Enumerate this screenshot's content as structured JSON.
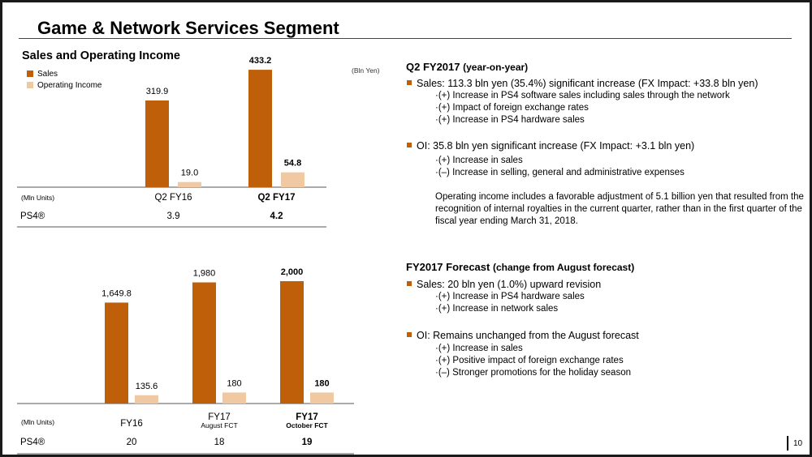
{
  "header": {
    "title": "Game & Network Services Segment"
  },
  "section_title": "Sales and Operating Income",
  "legend": [
    {
      "label": "Sales",
      "color": "#c05f0a"
    },
    {
      "label": "Operating Income",
      "color": "#f0c9a2"
    }
  ],
  "unit_label": "(Bln Yen)",
  "chart_data": [
    {
      "type": "bar",
      "title": "Sales and Operating Income",
      "unit": "(Bln Yen)",
      "categories": [
        "Q2 FY16",
        "Q2 FY17"
      ],
      "category_sublabels": [
        "",
        ""
      ],
      "series": [
        {
          "name": "Sales",
          "values": [
            319.9,
            433.2
          ],
          "color": "#c05f0a"
        },
        {
          "name": "Operating Income",
          "values": [
            19.0,
            54.8
          ],
          "color": "#f0c9a2"
        }
      ],
      "value_labels": [
        [
          "319.9",
          "433.2"
        ],
        [
          "19.0",
          "54.8"
        ]
      ],
      "bold_category_index": 1,
      "row_header": "(Mln Units)",
      "row_label": "PS4®",
      "row_values": [
        "3.9",
        "4.2"
      ]
    },
    {
      "type": "bar",
      "title": "FY2017 Forecast",
      "categories": [
        "FY16",
        "FY17",
        "FY17"
      ],
      "category_sublabels": [
        "",
        "August FCT",
        "October FCT"
      ],
      "series": [
        {
          "name": "Sales",
          "values": [
            1649.8,
            1980,
            2000
          ],
          "color": "#c05f0a"
        },
        {
          "name": "Operating Income",
          "values": [
            135.6,
            180,
            180
          ],
          "color": "#f0c9a2"
        }
      ],
      "value_labels": [
        [
          "1,649.8",
          "1,980",
          "2,000"
        ],
        [
          "135.6",
          "180",
          "180"
        ]
      ],
      "bold_category_index": 2,
      "row_header": "(Mln Units)",
      "row_label": "PS4®",
      "row_values": [
        "20",
        "18",
        "19"
      ]
    }
  ],
  "right": {
    "q2": {
      "heading": "Q2 FY2017",
      "heading_suffix": "(year-on-year)",
      "sales_bullet": "Sales: 113.3 bln yen (35.4%) significant increase (FX Impact: +33.8 bln yen)",
      "sales_points": [
        "·(+) Increase in PS4 software sales including sales through the network",
        "·(+) Impact of foreign exchange rates",
        "·(+) Increase in PS4 hardware sales"
      ],
      "oi_bullet": "OI: 35.8 bln yen significant increase (FX Impact: +3.1 bln yen)",
      "oi_points": [
        "·(+) Increase in sales",
        "·(–) Increase in selling, general and administrative expenses"
      ],
      "note": "Operating income includes a favorable adjustment of 5.1 billion yen that resulted from the recognition of internal royalties in the current quarter, rather than in the first quarter of the fiscal year ending March 31, 2018."
    },
    "forecast": {
      "heading": "FY2017 Forecast",
      "heading_suffix": "(change from August forecast)",
      "sales_bullet": "Sales: 20 bln yen (1.0%) upward revision",
      "sales_points": [
        "·(+) Increase in PS4 hardware sales",
        "·(+) Increase in network sales"
      ],
      "oi_bullet": "OI: Remains unchanged from the August forecast",
      "oi_points": [
        "·(+) Increase in sales",
        "·(+) Positive impact of foreign exchange rates",
        "·(–) Stronger promotions for the holiday season"
      ]
    }
  },
  "page_number": "10"
}
